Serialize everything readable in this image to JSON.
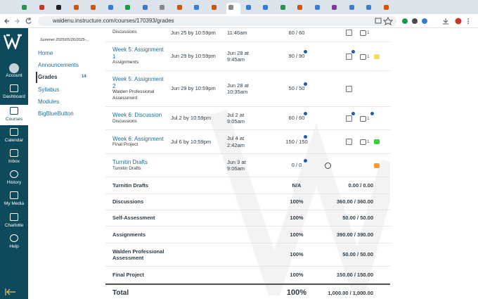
{
  "browser": {
    "url": "waldenu.instructure.com/courses/170393/grades"
  },
  "global_nav": [
    "Account",
    "Dashboard",
    "Courses",
    "Calendar",
    "Inbox",
    "History",
    "My Media",
    "Charlotte",
    "Help"
  ],
  "course_nav": {
    "term": "Summer 2025\\05/26/2025-...",
    "items": [
      "Home",
      "Announcements",
      "Grades",
      "Syllabus",
      "Modules",
      "BigBlueButton"
    ],
    "badge": "14"
  },
  "assignments": [
    {
      "group": "Discussions",
      "due": "Jun 25 by 10:59pm",
      "submitted": "11:46am",
      "score": "60 / 60",
      "comments": "1"
    },
    {
      "name": "Week 5: Assignment 1",
      "group": "Assignments",
      "due": "Jun 29 by 10:59pm",
      "submitted": "Jun 28 at 9:45am",
      "score": "90 / 90",
      "comments": "1"
    },
    {
      "name": "Week 5: Assignment 2",
      "group": "Walden Professional Assessment",
      "due": "Jun 29 by 10:59pm",
      "submitted": "Jun 28 at 10:35am",
      "score": "50 / 50"
    },
    {
      "name": "Week 6: Discussion",
      "group": "Discussions",
      "due": "Jul 2 by 10:59pm",
      "submitted": "Jul 2 at 9:05am",
      "score": "60 / 60",
      "comments": "1"
    },
    {
      "name": "Week 6: Assignment",
      "group": "Final Project",
      "due": "Jul 6 by 10:59pm",
      "submitted": "Jul 4 at 2:42am",
      "score": "150 / 150",
      "comments": "1"
    },
    {
      "name": "Turnitin Drafts",
      "group": "Turnitin Drafts",
      "submitted": "Jun 3 at 9:06am",
      "score": "0 / 0"
    }
  ],
  "groups": [
    {
      "name": "Turnitin Drafts",
      "percent": "N/A",
      "points": "0.00 / 0.00"
    },
    {
      "name": "Discussions",
      "percent": "100%",
      "points": "360.00 / 360.00"
    },
    {
      "name": "Self-Assessment",
      "percent": "100%",
      "points": "50.00 / 50.00"
    },
    {
      "name": "Assignments",
      "percent": "100%",
      "points": "390.00 / 390.00"
    },
    {
      "name": "Walden Professional Assessment",
      "percent": "100%",
      "points": "50.00 / 50.00"
    },
    {
      "name": "Final Project",
      "percent": "100%",
      "points": "150.00 / 150.00"
    }
  ],
  "total": {
    "label": "Total",
    "percent": "100%",
    "points": "1,000.00 / 1,000.00"
  }
}
